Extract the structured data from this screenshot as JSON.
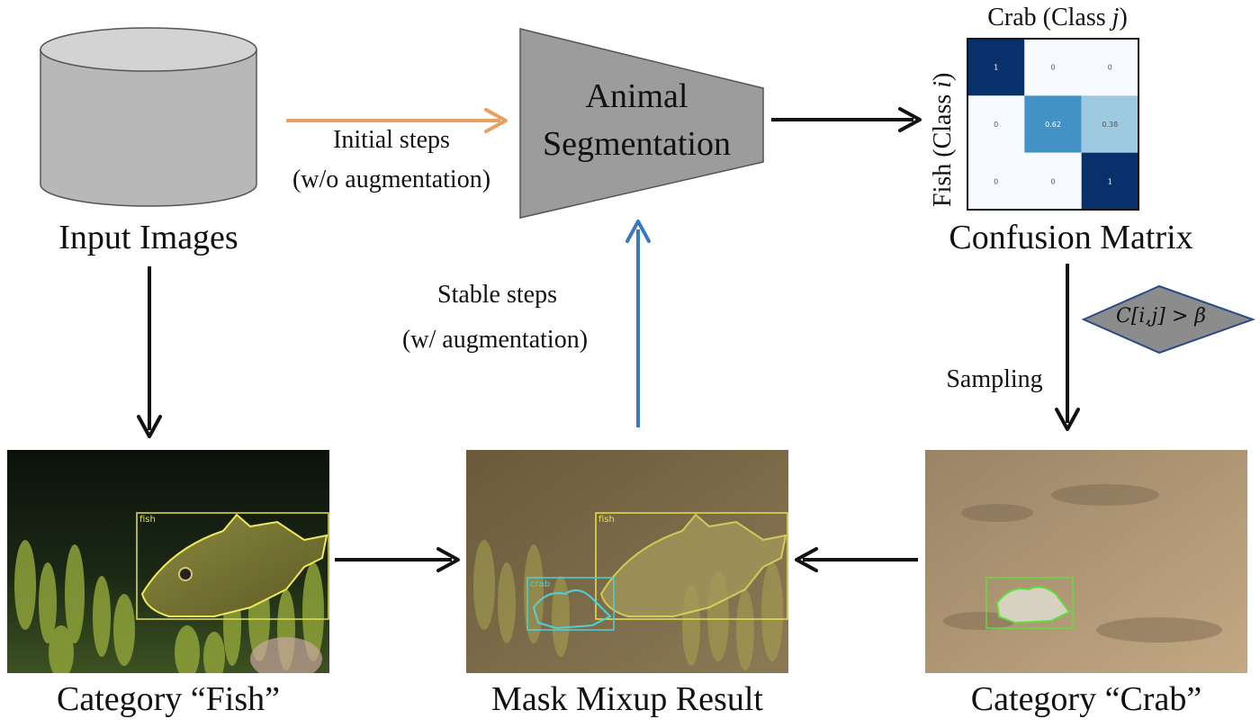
{
  "database": {
    "label": "Input Images"
  },
  "model": {
    "line1": "Animal",
    "line2": "Segmentation"
  },
  "initial_steps": {
    "line1": "Initial steps",
    "line2": "(w/o augmentation)"
  },
  "stable_steps": {
    "line1": "Stable steps",
    "line2": "(w/ augmentation)"
  },
  "confusion": {
    "title": "Confusion Matrix",
    "top_prefix": "Crab (Class ",
    "top_var": "j",
    "top_suffix": ")",
    "side_prefix": "Fish (Class ",
    "side_var": "i",
    "side_suffix": ")",
    "matrix": [
      [
        "1",
        "0",
        "0"
      ],
      [
        "0",
        "0.62",
        "0.38"
      ],
      [
        "0",
        "0",
        "1"
      ]
    ],
    "values": [
      [
        1,
        0,
        0
      ],
      [
        0,
        0.62,
        0.38
      ],
      [
        0,
        0,
        1
      ]
    ]
  },
  "condition": {
    "label": "C[i,j] > β"
  },
  "sampling": {
    "label": "Sampling"
  },
  "panels": {
    "fish": {
      "caption": "Category “Fish”",
      "box_label": "fish"
    },
    "mixup": {
      "caption": "Mask Mixup Result",
      "fish_label": "fish",
      "crab_label": "crab"
    },
    "crab": {
      "caption": "Category “Crab”"
    }
  },
  "colors": {
    "initial_arrow": "#e8a060",
    "stable_arrow": "#3a78c2",
    "cylinder": "#b8b8b8",
    "trapezoid": "#9c9c9c",
    "diamond": "#8c8c8c",
    "diamond_border": "#2b4a86",
    "fish_box": "#e6e050",
    "crab_box": "#4fd0d8",
    "crab_box_green": "#5de03a"
  }
}
